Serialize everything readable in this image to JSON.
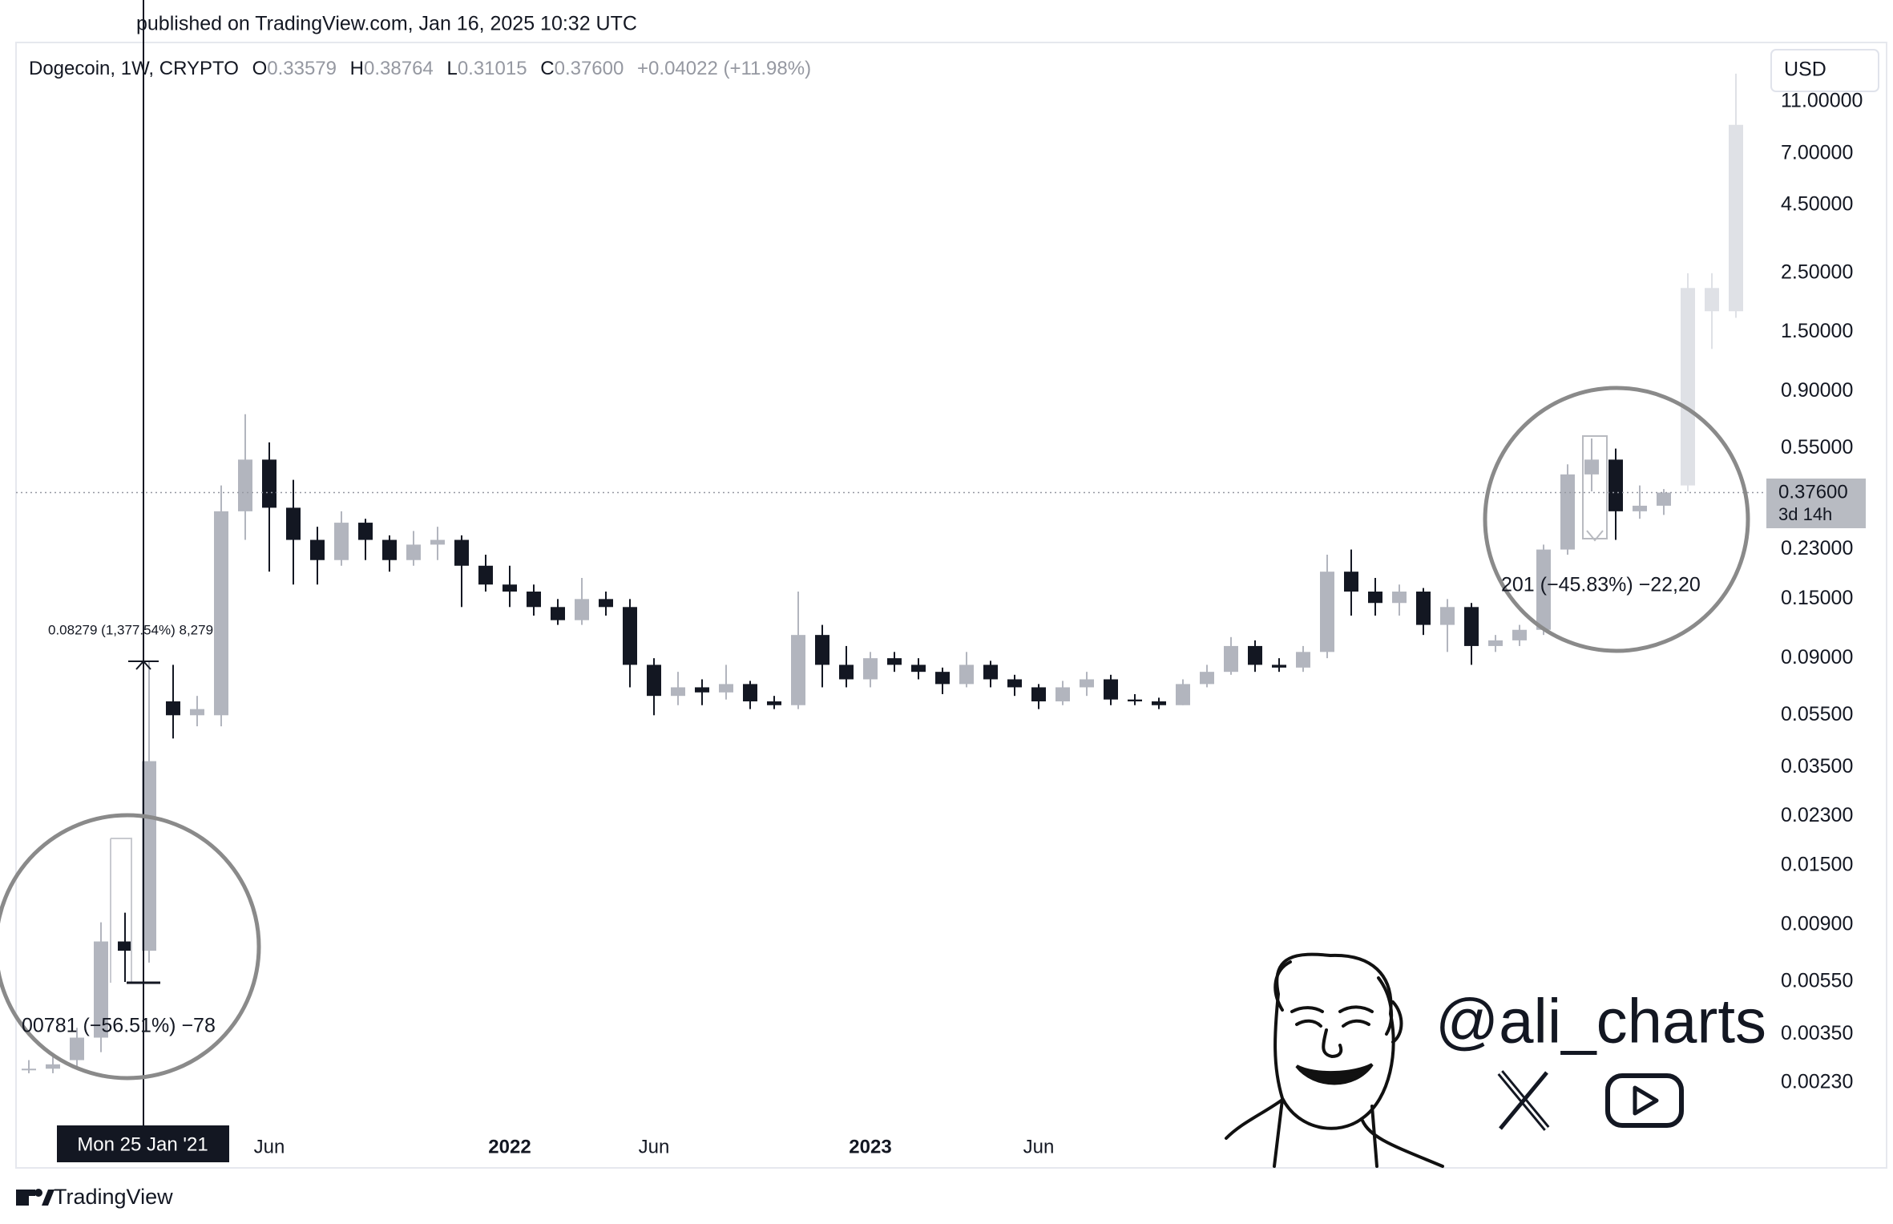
{
  "chart_data": {
    "type": "candlestick",
    "published": "published on TradingView.com, Jan 16, 2025 10:32 UTC",
    "header": {
      "symbol": "Dogecoin, 1W, CRYPTO",
      "ohlc": [
        {
          "key": "O",
          "value": "0.33579"
        },
        {
          "key": "H",
          "value": "0.38764"
        },
        {
          "key": "L",
          "value": "0.31015"
        },
        {
          "key": "C",
          "value": "0.37600"
        }
      ],
      "change": "+0.04022 (+11.98%)"
    },
    "currency": "USD",
    "price_label": "0.37600",
    "countdown": "3d 14h",
    "crosshair_label": "Mon 25 Jan '21",
    "annotations": [
      "0.08279 (1,377.54%) 8,279",
      "00781 (−56.51%) −78",
      "201 (−45.83%) −22,20"
    ],
    "watermark": "@ali_charts",
    "footer": "TradingView",
    "log_scale": true,
    "grid": false,
    "ylim": [
      0.00155,
      18.2
    ],
    "yticks": [
      {
        "value": 11,
        "label": "11.00000"
      },
      {
        "value": 7,
        "label": "7.00000"
      },
      {
        "value": 4.5,
        "label": "4.50000"
      },
      {
        "value": 2.5,
        "label": "2.50000"
      },
      {
        "value": 1.5,
        "label": "1.50000"
      },
      {
        "value": 0.9,
        "label": "0.90000"
      },
      {
        "value": 0.55,
        "label": "0.55000"
      },
      {
        "value": 0.23,
        "label": "0.23000"
      },
      {
        "value": 0.15,
        "label": "0.15000"
      },
      {
        "value": 0.09,
        "label": "0.09000"
      },
      {
        "value": 0.055,
        "label": "0.05500"
      },
      {
        "value": 0.035,
        "label": "0.03500"
      },
      {
        "value": 0.023,
        "label": "0.02300"
      },
      {
        "value": 0.015,
        "label": "0.01500"
      },
      {
        "value": 0.009,
        "label": "0.00900"
      },
      {
        "value": 0.0055,
        "label": "0.00550"
      },
      {
        "value": 0.0035,
        "label": "0.00350"
      },
      {
        "value": 0.0023,
        "label": "0.00230"
      }
    ],
    "categories": [
      null,
      null,
      null,
      null,
      null,
      null,
      null,
      null,
      null,
      null,
      "Jun",
      null,
      null,
      null,
      null,
      null,
      null,
      null,
      null,
      null,
      "2022",
      null,
      null,
      null,
      null,
      null,
      "Jun",
      null,
      null,
      null,
      null,
      null,
      null,
      null,
      null,
      "2023",
      null,
      null,
      null,
      null,
      null,
      null,
      "Jun",
      null,
      null,
      null,
      null,
      null,
      null,
      null,
      null,
      null,
      null,
      null,
      null,
      null,
      null,
      null,
      null,
      null,
      null,
      null,
      null,
      null,
      null,
      null,
      null,
      null,
      null,
      null,
      null,
      null
    ],
    "series": [
      {
        "up_color": "#b2b5be",
        "down_color": "#131722",
        "open": [
          0.0026,
          0.0026,
          0.0028,
          0.0034,
          0.0078,
          0.0072,
          0.062,
          0.055,
          0.055,
          0.32,
          0.5,
          0.33,
          0.25,
          0.21,
          0.29,
          0.25,
          0.21,
          0.24,
          0.25,
          0.2,
          0.17,
          0.16,
          0.14,
          0.125,
          0.15,
          0.14,
          0.085,
          0.065,
          0.07,
          0.067,
          0.072,
          0.062,
          0.06,
          0.11,
          0.085,
          0.075,
          0.09,
          0.085,
          0.08,
          0.072,
          0.085,
          0.075,
          0.07,
          0.062,
          0.07,
          0.075,
          0.063,
          0.062,
          0.06,
          0.072,
          0.08,
          0.1,
          0.085,
          0.083,
          0.095,
          0.19,
          0.16,
          0.145,
          0.16,
          0.12,
          0.14,
          0.1,
          0.105,
          0.115,
          0.23,
          0.44,
          0.5,
          0.32,
          0.33579,
          null,
          null,
          null
        ],
        "high": [
          0.0028,
          0.0029,
          0.0037,
          0.0092,
          0.01,
          0.087,
          0.085,
          0.065,
          0.4,
          0.74,
          0.58,
          0.42,
          0.28,
          0.32,
          0.3,
          0.26,
          0.27,
          0.28,
          0.26,
          0.22,
          0.2,
          0.17,
          0.15,
          0.18,
          0.16,
          0.15,
          0.09,
          0.08,
          0.075,
          0.085,
          0.074,
          0.065,
          0.16,
          0.12,
          0.1,
          0.095,
          0.095,
          0.09,
          0.083,
          0.095,
          0.088,
          0.078,
          0.072,
          0.074,
          0.08,
          0.078,
          0.066,
          0.064,
          0.075,
          0.085,
          0.108,
          0.105,
          0.09,
          0.1,
          0.22,
          0.23,
          0.18,
          0.17,
          0.165,
          0.15,
          0.145,
          0.11,
          0.12,
          0.24,
          0.48,
          0.6,
          0.55,
          0.4,
          0.38764,
          null,
          null,
          null
        ],
        "low": [
          0.0025,
          0.0025,
          0.0026,
          0.003,
          0.0055,
          0.0065,
          0.045,
          0.05,
          0.05,
          0.25,
          0.19,
          0.17,
          0.17,
          0.2,
          0.21,
          0.19,
          0.2,
          0.21,
          0.14,
          0.16,
          0.14,
          0.13,
          0.12,
          0.12,
          0.13,
          0.07,
          0.055,
          0.06,
          0.06,
          0.063,
          0.058,
          0.058,
          0.058,
          0.07,
          0.07,
          0.07,
          0.08,
          0.075,
          0.066,
          0.07,
          0.07,
          0.065,
          0.058,
          0.06,
          0.065,
          0.06,
          0.06,
          0.058,
          0.06,
          0.07,
          0.078,
          0.08,
          0.08,
          0.08,
          0.09,
          0.13,
          0.13,
          0.13,
          0.11,
          0.095,
          0.085,
          0.095,
          0.1,
          0.11,
          0.22,
          0.38,
          0.25,
          0.3,
          0.31015,
          null,
          null,
          null
        ],
        "close": [
          0.0026,
          0.0027,
          0.0034,
          0.0078,
          0.0072,
          0.037,
          0.055,
          0.058,
          0.32,
          0.5,
          0.33,
          0.25,
          0.21,
          0.29,
          0.25,
          0.21,
          0.24,
          0.25,
          0.2,
          0.17,
          0.16,
          0.14,
          0.125,
          0.15,
          0.14,
          0.085,
          0.065,
          0.07,
          0.067,
          0.072,
          0.062,
          0.06,
          0.11,
          0.085,
          0.075,
          0.09,
          0.085,
          0.08,
          0.072,
          0.085,
          0.075,
          0.07,
          0.062,
          0.07,
          0.075,
          0.063,
          0.062,
          0.06,
          0.072,
          0.08,
          0.1,
          0.085,
          0.083,
          0.095,
          0.19,
          0.16,
          0.145,
          0.16,
          0.12,
          0.14,
          0.1,
          0.105,
          0.115,
          0.23,
          0.44,
          0.5,
          0.32,
          0.33579,
          0.376,
          null,
          null,
          null
        ]
      },
      {
        "up_color": "#dfe1e6",
        "down_color": "#dfe1e6",
        "open": [
          null,
          null,
          null,
          null,
          null,
          null,
          null,
          null,
          null,
          null,
          null,
          null,
          null,
          null,
          null,
          null,
          null,
          null,
          null,
          null,
          null,
          null,
          null,
          null,
          null,
          null,
          null,
          null,
          null,
          null,
          null,
          null,
          null,
          null,
          null,
          null,
          null,
          null,
          null,
          null,
          null,
          null,
          null,
          null,
          null,
          null,
          null,
          null,
          null,
          null,
          null,
          null,
          null,
          null,
          null,
          null,
          null,
          null,
          null,
          null,
          null,
          null,
          null,
          null,
          null,
          null,
          null,
          null,
          null,
          0.4,
          2.2,
          1.8
        ],
        "high": [
          null,
          null,
          null,
          null,
          null,
          null,
          null,
          null,
          null,
          null,
          null,
          null,
          null,
          null,
          null,
          null,
          null,
          null,
          null,
          null,
          null,
          null,
          null,
          null,
          null,
          null,
          null,
          null,
          null,
          null,
          null,
          null,
          null,
          null,
          null,
          null,
          null,
          null,
          null,
          null,
          null,
          null,
          null,
          null,
          null,
          null,
          null,
          null,
          null,
          null,
          null,
          null,
          null,
          null,
          null,
          null,
          null,
          null,
          null,
          null,
          null,
          null,
          null,
          null,
          null,
          null,
          null,
          null,
          null,
          2.5,
          2.5,
          14
        ],
        "low": [
          null,
          null,
          null,
          null,
          null,
          null,
          null,
          null,
          null,
          null,
          null,
          null,
          null,
          null,
          null,
          null,
          null,
          null,
          null,
          null,
          null,
          null,
          null,
          null,
          null,
          null,
          null,
          null,
          null,
          null,
          null,
          null,
          null,
          null,
          null,
          null,
          null,
          null,
          null,
          null,
          null,
          null,
          null,
          null,
          null,
          null,
          null,
          null,
          null,
          null,
          null,
          null,
          null,
          null,
          null,
          null,
          null,
          null,
          null,
          null,
          null,
          null,
          null,
          null,
          null,
          null,
          null,
          null,
          null,
          0.38,
          1.3,
          1.7
        ],
        "close": [
          null,
          null,
          null,
          null,
          null,
          null,
          null,
          null,
          null,
          null,
          null,
          null,
          null,
          null,
          null,
          null,
          null,
          null,
          null,
          null,
          null,
          null,
          null,
          null,
          null,
          null,
          null,
          null,
          null,
          null,
          null,
          null,
          null,
          null,
          null,
          null,
          null,
          null,
          null,
          null,
          null,
          null,
          null,
          null,
          null,
          null,
          null,
          null,
          null,
          null,
          null,
          null,
          null,
          null,
          null,
          null,
          null,
          null,
          null,
          null,
          null,
          null,
          null,
          null,
          null,
          null,
          null,
          null,
          null,
          2.2,
          1.8,
          9
        ]
      }
    ]
  }
}
